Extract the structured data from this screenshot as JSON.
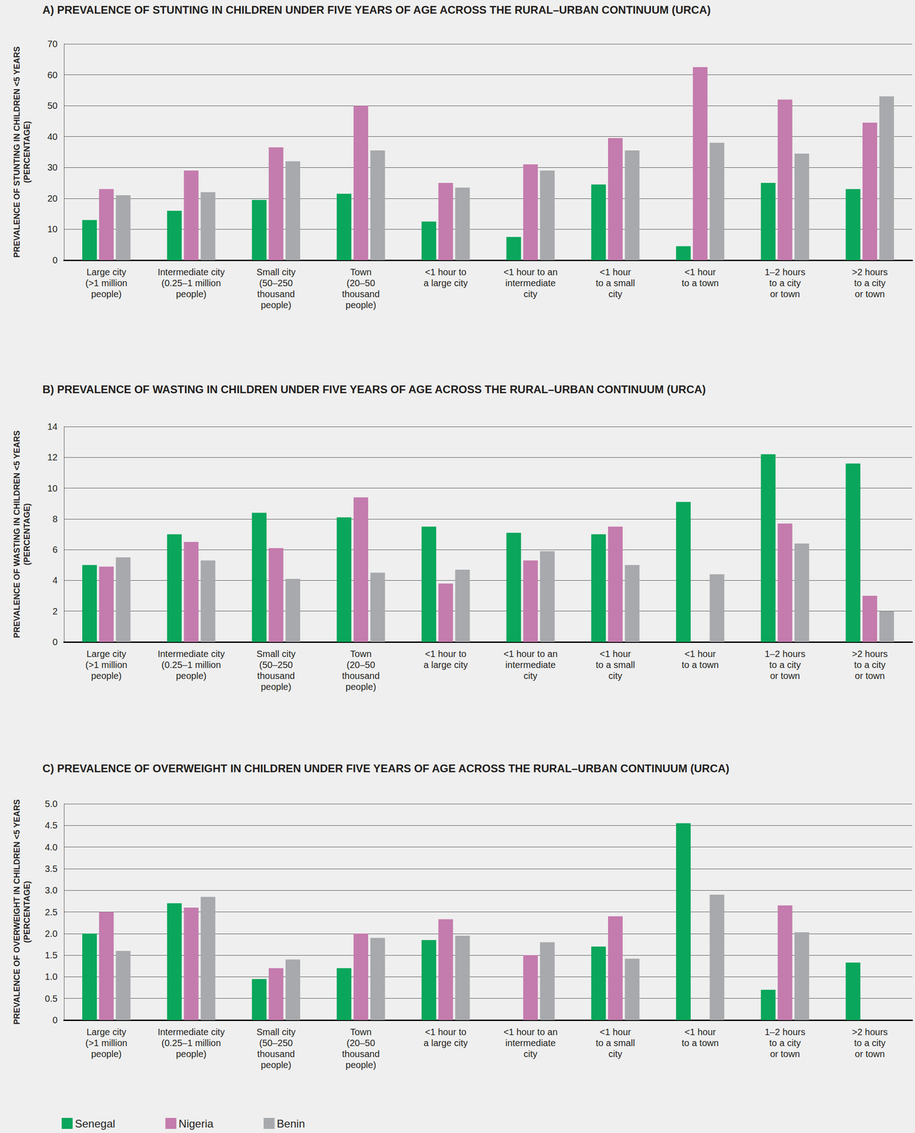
{
  "chart_data": [
    {
      "type": "bar",
      "title": "A) PREVALENCE OF STUNTING IN CHILDREN UNDER FIVE YEARS OF AGE ACROSS THE RURAL–URBAN CONTINUUM (URCA)",
      "ylabel": "PREVALENCE OF STUNTING IN CHILDREN <5 YEARS\n(PERCENTAGE)",
      "categories": [
        "Large city\n(>1 million\npeople)",
        "Intermediate city\n(0.25–1 million\npeople)",
        "Small city\n(50–250\nthousand\npeople)",
        "Town\n(20–50\nthousand\npeople)",
        "<1 hour to\na large city",
        "<1 hour to an\nintermediate\ncity",
        "<1 hour\nto a small\ncity",
        "<1 hour\nto a town",
        "1–2 hours\nto a city\nor town",
        ">2 hours\nto a city\nor town"
      ],
      "series": [
        {
          "name": "Senegal",
          "color": "#0aa65b",
          "values": [
            13,
            16,
            19.5,
            21.5,
            12.5,
            7.5,
            24.5,
            4.5,
            25,
            23
          ]
        },
        {
          "name": "Nigeria",
          "color": "#c47bad",
          "values": [
            23,
            29,
            36.5,
            50,
            25,
            31,
            39.5,
            62.5,
            52,
            44.5
          ]
        },
        {
          "name": "Benin",
          "color": "#a7a9ac",
          "values": [
            21,
            22,
            32,
            35.5,
            23.5,
            29,
            35.5,
            38,
            34.5,
            53
          ]
        }
      ],
      "ylim": [
        0,
        70
      ],
      "yticks": [
        0,
        10,
        20,
        30,
        40,
        50,
        60,
        70
      ],
      "grid": true
    },
    {
      "type": "bar",
      "title": "B) PREVALENCE OF WASTING IN CHILDREN UNDER FIVE YEARS OF AGE ACROSS THE RURAL–URBAN CONTINUUM (URCA)",
      "ylabel": "PREVALENCE OF WASTING IN CHILDREN <5 YEARS\n(PERCENTAGE)",
      "categories": [
        "Large city\n(>1 million\npeople)",
        "Intermediate city\n(0.25–1 million\npeople)",
        "Small city\n(50–250\nthousand\npeople)",
        "Town\n(20–50\nthousand\npeople)",
        "<1 hour to\na large city",
        "<1 hour to an\nintermediate\ncity",
        "<1 hour\nto a small\ncity",
        "<1 hour\nto a town",
        "1–2 hours\nto a city\nor town",
        ">2 hours\nto a city\nor town"
      ],
      "series": [
        {
          "name": "Senegal",
          "color": "#0aa65b",
          "values": [
            5,
            7,
            8.4,
            8.1,
            7.5,
            7.1,
            7,
            9.1,
            12.2,
            11.6
          ]
        },
        {
          "name": "Nigeria",
          "color": "#c47bad",
          "values": [
            4.9,
            6.5,
            6.1,
            9.4,
            3.8,
            5.3,
            7.5,
            null,
            7.7,
            3
          ]
        },
        {
          "name": "Benin",
          "color": "#a7a9ac",
          "values": [
            5.5,
            5.3,
            4.1,
            4.5,
            4.7,
            5.9,
            5,
            4.4,
            6.4,
            2
          ]
        }
      ],
      "ylim": [
        0,
        14
      ],
      "yticks": [
        0,
        2,
        4,
        6,
        8,
        10,
        12,
        14
      ],
      "grid": true
    },
    {
      "type": "bar",
      "title": "C) PREVALENCE OF OVERWEIGHT IN CHILDREN UNDER FIVE YEARS OF AGE ACROSS THE RURAL–URBAN CONTINUUM (URCA)",
      "ylabel": "PREVALENCE OF OVERWEIGHT IN CHILDREN <5 YEARS\n(PERCENTAGE)",
      "categories": [
        "Large city\n(>1 million\npeople)",
        "Intermediate city\n(0.25–1 million\npeople)",
        "Small city\n(50–250\nthousand\npeople)",
        "Town\n(20–50\nthousand\npeople)",
        "<1 hour to\na large city",
        "<1 hour to an\nintermediate\ncity",
        "<1 hour\nto a small\ncity",
        "<1 hour\nto a town",
        "1–2 hours\nto a city\nor town",
        ">2 hours\nto a city\nor town"
      ],
      "series": [
        {
          "name": "Senegal",
          "color": "#0aa65b",
          "values": [
            2,
            2.7,
            0.95,
            1.2,
            1.85,
            null,
            1.7,
            4.55,
            0.7,
            1.33
          ]
        },
        {
          "name": "Nigeria",
          "color": "#c47bad",
          "values": [
            2.5,
            2.6,
            1.2,
            2,
            2.33,
            1.5,
            2.4,
            null,
            2.65,
            null
          ]
        },
        {
          "name": "Benin",
          "color": "#a7a9ac",
          "values": [
            1.6,
            2.85,
            1.4,
            1.9,
            1.95,
            1.8,
            1.42,
            2.9,
            2.03,
            null
          ]
        }
      ],
      "ylim": [
        0,
        5
      ],
      "yticks": [
        0,
        0.5,
        {
          "value": 1,
          "label": "1.0"
        },
        1.5,
        {
          "value": 2,
          "label": "2.0"
        },
        2.5,
        {
          "value": 3,
          "label": "3.0"
        },
        3.5,
        {
          "value": 4,
          "label": "4.0"
        },
        4.5,
        {
          "value": 5,
          "label": "5.0"
        }
      ],
      "grid": true,
      "legend": "bottom left"
    }
  ]
}
